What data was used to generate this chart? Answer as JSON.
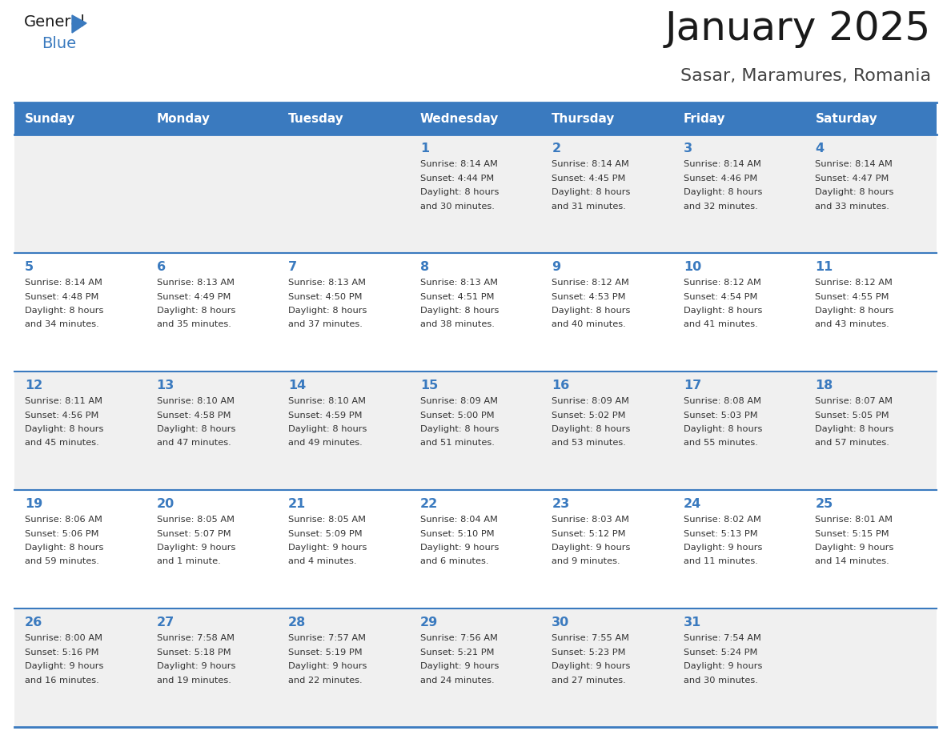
{
  "title": "January 2025",
  "subtitle": "Sasar, Maramures, Romania",
  "days_of_week": [
    "Sunday",
    "Monday",
    "Tuesday",
    "Wednesday",
    "Thursday",
    "Friday",
    "Saturday"
  ],
  "header_bg": "#3a7abf",
  "header_text": "#ffffff",
  "row_bg_even": "#f0f0f0",
  "row_bg_odd": "#ffffff",
  "day_number_color": "#3a7abf",
  "text_color": "#333333",
  "border_color": "#3a7abf",
  "calendar_data": [
    [
      {
        "day": null,
        "sunrise": null,
        "sunset": null,
        "daylight_line1": null,
        "daylight_line2": null
      },
      {
        "day": null,
        "sunrise": null,
        "sunset": null,
        "daylight_line1": null,
        "daylight_line2": null
      },
      {
        "day": null,
        "sunrise": null,
        "sunset": null,
        "daylight_line1": null,
        "daylight_line2": null
      },
      {
        "day": "1",
        "sunrise": "8:14 AM",
        "sunset": "4:44 PM",
        "daylight_line1": "8 hours",
        "daylight_line2": "and 30 minutes."
      },
      {
        "day": "2",
        "sunrise": "8:14 AM",
        "sunset": "4:45 PM",
        "daylight_line1": "8 hours",
        "daylight_line2": "and 31 minutes."
      },
      {
        "day": "3",
        "sunrise": "8:14 AM",
        "sunset": "4:46 PM",
        "daylight_line1": "8 hours",
        "daylight_line2": "and 32 minutes."
      },
      {
        "day": "4",
        "sunrise": "8:14 AM",
        "sunset": "4:47 PM",
        "daylight_line1": "8 hours",
        "daylight_line2": "and 33 minutes."
      }
    ],
    [
      {
        "day": "5",
        "sunrise": "8:14 AM",
        "sunset": "4:48 PM",
        "daylight_line1": "8 hours",
        "daylight_line2": "and 34 minutes."
      },
      {
        "day": "6",
        "sunrise": "8:13 AM",
        "sunset": "4:49 PM",
        "daylight_line1": "8 hours",
        "daylight_line2": "and 35 minutes."
      },
      {
        "day": "7",
        "sunrise": "8:13 AM",
        "sunset": "4:50 PM",
        "daylight_line1": "8 hours",
        "daylight_line2": "and 37 minutes."
      },
      {
        "day": "8",
        "sunrise": "8:13 AM",
        "sunset": "4:51 PM",
        "daylight_line1": "8 hours",
        "daylight_line2": "and 38 minutes."
      },
      {
        "day": "9",
        "sunrise": "8:12 AM",
        "sunset": "4:53 PM",
        "daylight_line1": "8 hours",
        "daylight_line2": "and 40 minutes."
      },
      {
        "day": "10",
        "sunrise": "8:12 AM",
        "sunset": "4:54 PM",
        "daylight_line1": "8 hours",
        "daylight_line2": "and 41 minutes."
      },
      {
        "day": "11",
        "sunrise": "8:12 AM",
        "sunset": "4:55 PM",
        "daylight_line1": "8 hours",
        "daylight_line2": "and 43 minutes."
      }
    ],
    [
      {
        "day": "12",
        "sunrise": "8:11 AM",
        "sunset": "4:56 PM",
        "daylight_line1": "8 hours",
        "daylight_line2": "and 45 minutes."
      },
      {
        "day": "13",
        "sunrise": "8:10 AM",
        "sunset": "4:58 PM",
        "daylight_line1": "8 hours",
        "daylight_line2": "and 47 minutes."
      },
      {
        "day": "14",
        "sunrise": "8:10 AM",
        "sunset": "4:59 PM",
        "daylight_line1": "8 hours",
        "daylight_line2": "and 49 minutes."
      },
      {
        "day": "15",
        "sunrise": "8:09 AM",
        "sunset": "5:00 PM",
        "daylight_line1": "8 hours",
        "daylight_line2": "and 51 minutes."
      },
      {
        "day": "16",
        "sunrise": "8:09 AM",
        "sunset": "5:02 PM",
        "daylight_line1": "8 hours",
        "daylight_line2": "and 53 minutes."
      },
      {
        "day": "17",
        "sunrise": "8:08 AM",
        "sunset": "5:03 PM",
        "daylight_line1": "8 hours",
        "daylight_line2": "and 55 minutes."
      },
      {
        "day": "18",
        "sunrise": "8:07 AM",
        "sunset": "5:05 PM",
        "daylight_line1": "8 hours",
        "daylight_line2": "and 57 minutes."
      }
    ],
    [
      {
        "day": "19",
        "sunrise": "8:06 AM",
        "sunset": "5:06 PM",
        "daylight_line1": "8 hours",
        "daylight_line2": "and 59 minutes."
      },
      {
        "day": "20",
        "sunrise": "8:05 AM",
        "sunset": "5:07 PM",
        "daylight_line1": "9 hours",
        "daylight_line2": "and 1 minute."
      },
      {
        "day": "21",
        "sunrise": "8:05 AM",
        "sunset": "5:09 PM",
        "daylight_line1": "9 hours",
        "daylight_line2": "and 4 minutes."
      },
      {
        "day": "22",
        "sunrise": "8:04 AM",
        "sunset": "5:10 PM",
        "daylight_line1": "9 hours",
        "daylight_line2": "and 6 minutes."
      },
      {
        "day": "23",
        "sunrise": "8:03 AM",
        "sunset": "5:12 PM",
        "daylight_line1": "9 hours",
        "daylight_line2": "and 9 minutes."
      },
      {
        "day": "24",
        "sunrise": "8:02 AM",
        "sunset": "5:13 PM",
        "daylight_line1": "9 hours",
        "daylight_line2": "and 11 minutes."
      },
      {
        "day": "25",
        "sunrise": "8:01 AM",
        "sunset": "5:15 PM",
        "daylight_line1": "9 hours",
        "daylight_line2": "and 14 minutes."
      }
    ],
    [
      {
        "day": "26",
        "sunrise": "8:00 AM",
        "sunset": "5:16 PM",
        "daylight_line1": "9 hours",
        "daylight_line2": "and 16 minutes."
      },
      {
        "day": "27",
        "sunrise": "7:58 AM",
        "sunset": "5:18 PM",
        "daylight_line1": "9 hours",
        "daylight_line2": "and 19 minutes."
      },
      {
        "day": "28",
        "sunrise": "7:57 AM",
        "sunset": "5:19 PM",
        "daylight_line1": "9 hours",
        "daylight_line2": "and 22 minutes."
      },
      {
        "day": "29",
        "sunrise": "7:56 AM",
        "sunset": "5:21 PM",
        "daylight_line1": "9 hours",
        "daylight_line2": "and 24 minutes."
      },
      {
        "day": "30",
        "sunrise": "7:55 AM",
        "sunset": "5:23 PM",
        "daylight_line1": "9 hours",
        "daylight_line2": "and 27 minutes."
      },
      {
        "day": "31",
        "sunrise": "7:54 AM",
        "sunset": "5:24 PM",
        "daylight_line1": "9 hours",
        "daylight_line2": "and 30 minutes."
      },
      {
        "day": null,
        "sunrise": null,
        "sunset": null,
        "daylight_line1": null,
        "daylight_line2": null
      }
    ]
  ]
}
